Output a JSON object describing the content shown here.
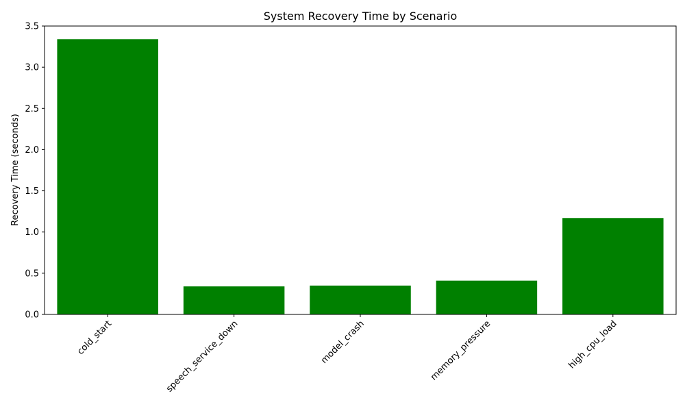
{
  "chart_data": {
    "type": "bar",
    "title": "System Recovery Time by Scenario",
    "xlabel": "",
    "ylabel": "Recovery Time (seconds)",
    "categories": [
      "cold_start",
      "speech_service_down",
      "model_crash",
      "memory_pressure",
      "high_cpu_load"
    ],
    "values": [
      3.34,
      0.34,
      0.35,
      0.41,
      1.17
    ],
    "ylim": [
      0,
      3.5
    ],
    "yticks": [
      "0.0",
      "0.5",
      "1.0",
      "1.5",
      "2.0",
      "2.5",
      "3.0",
      "3.5"
    ],
    "bar_color": "#008000",
    "grid": false,
    "legend": "none",
    "xtick_rotation": "45"
  }
}
